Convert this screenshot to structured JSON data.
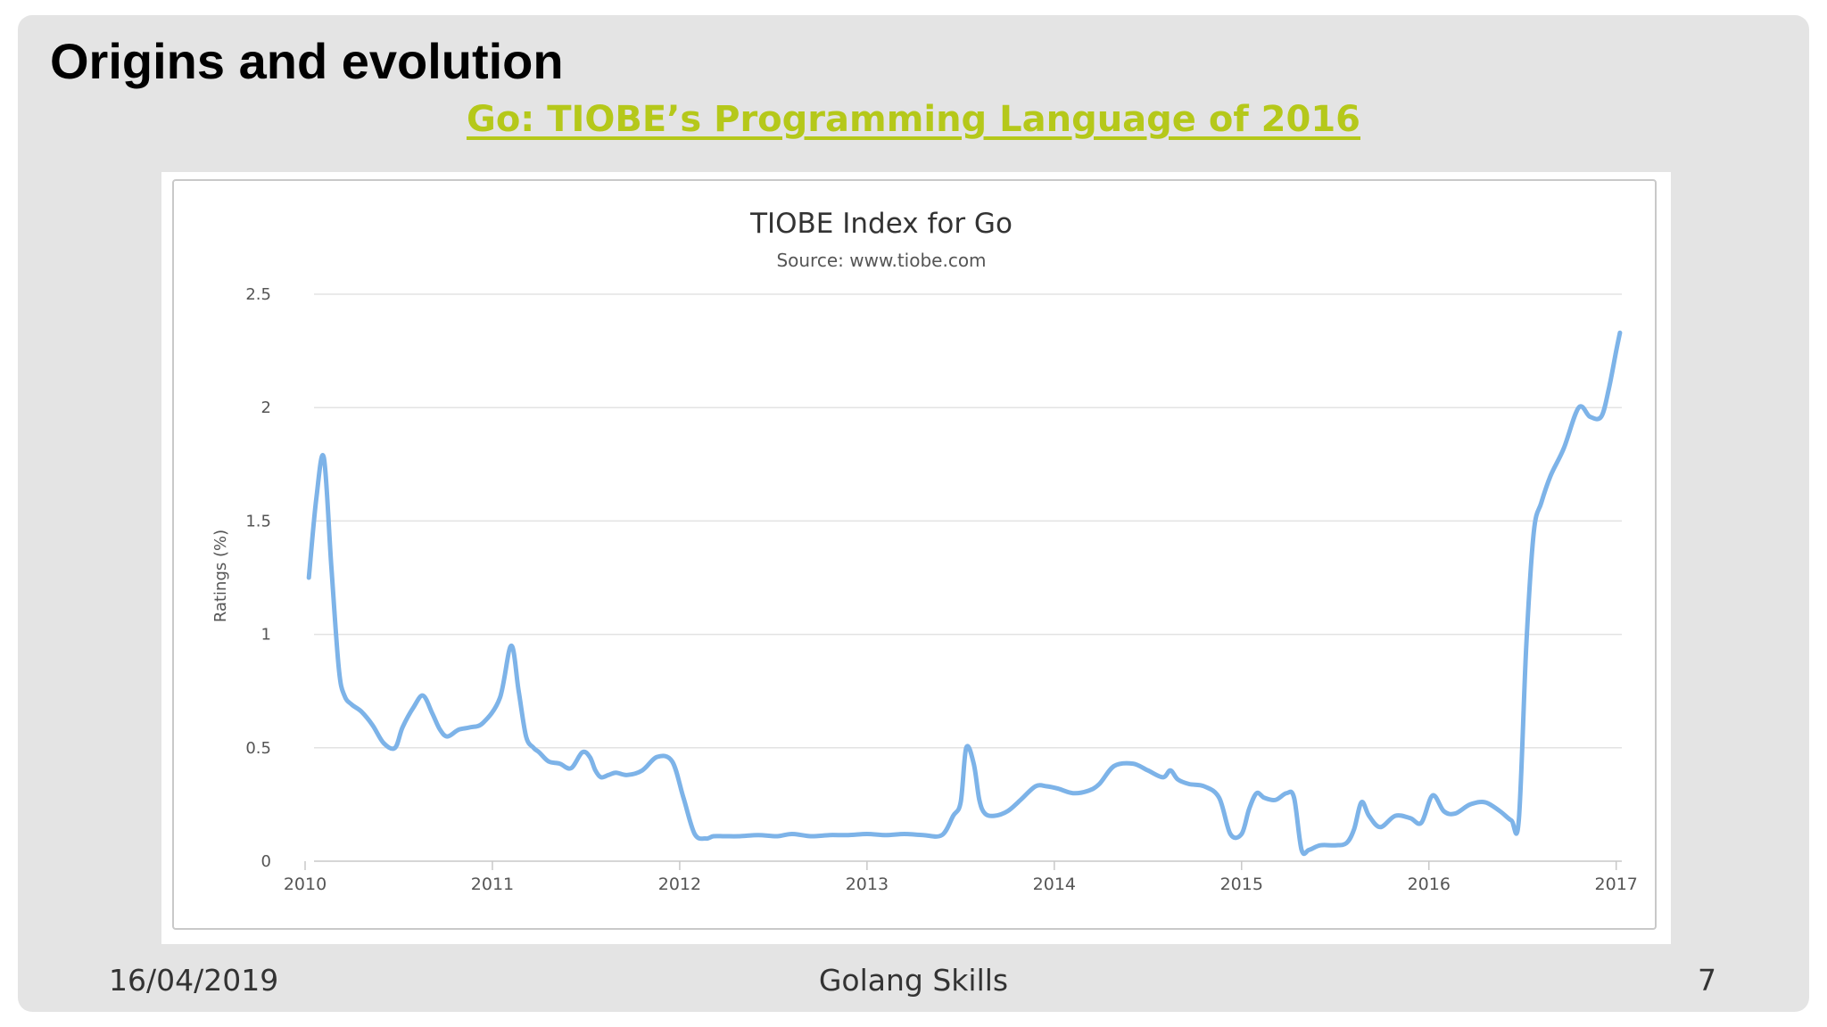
{
  "slide": {
    "title": "Origins and evolution",
    "link_text": "Go: TIOBE’s Programming Language of 2016",
    "footer_date": "16/04/2019",
    "footer_center": "Golang Skills",
    "page_number": "7"
  },
  "colors": {
    "link": "#b5c81a",
    "series_line": "#7db3e8",
    "grid": "#e3e3e3"
  },
  "chart_data": {
    "type": "line",
    "title": "TIOBE Index for Go",
    "subtitle": "Source: www.tiobe.com",
    "ylabel": "Ratings (%)",
    "xlabel": "",
    "xlim": [
      2010,
      2017.03
    ],
    "ylim": [
      0,
      2.5
    ],
    "x_ticks": [
      "2010",
      "2011",
      "2012",
      "2013",
      "2014",
      "2015",
      "2016",
      "2017"
    ],
    "y_ticks": [
      "0",
      "0.5",
      "1",
      "1.5",
      "2",
      "2.5"
    ],
    "grid": true,
    "legend": "none",
    "series": [
      {
        "x": [
          2010.02,
          2010.06,
          2010.1,
          2010.14,
          2010.18,
          2010.21,
          2010.25,
          2010.3,
          2010.36,
          2010.42,
          2010.48,
          2010.52,
          2010.58,
          2010.63,
          2010.68,
          2010.72,
          2010.76,
          2010.82,
          2010.88,
          2010.95,
          2011.04,
          2011.1,
          2011.14,
          2011.18,
          2011.22,
          2011.25,
          2011.3,
          2011.36,
          2011.42,
          2011.48,
          2011.52,
          2011.55,
          2011.58,
          2011.62,
          2011.66,
          2011.72,
          2011.8,
          2011.88,
          2011.96,
          2012.02,
          2012.08,
          2012.14,
          2012.18,
          2012.24,
          2012.32,
          2012.42,
          2012.52,
          2012.6,
          2012.7,
          2012.8,
          2012.9,
          2013.0,
          2013.1,
          2013.2,
          2013.3,
          2013.4,
          2013.46,
          2013.5,
          2013.53,
          2013.57,
          2013.6,
          2013.63,
          2013.68,
          2013.75,
          2013.82,
          2013.9,
          2013.96,
          2014.02,
          2014.1,
          2014.18,
          2014.24,
          2014.32,
          2014.42,
          2014.5,
          2014.58,
          2014.62,
          2014.66,
          2014.72,
          2014.8,
          2014.88,
          2014.94,
          2015.0,
          2015.04,
          2015.08,
          2015.12,
          2015.18,
          2015.24,
          2015.28,
          2015.32,
          2015.36,
          2015.42,
          2015.5,
          2015.56,
          2015.6,
          2015.64,
          2015.68,
          2015.74,
          2015.82,
          2015.9,
          2015.96,
          2016.02,
          2016.08,
          2016.14,
          2016.22,
          2016.3,
          2016.38,
          2016.44,
          2016.48,
          2016.52,
          2016.56,
          2016.6,
          2016.65,
          2016.72,
          2016.8,
          2016.86,
          2016.92,
          2016.96,
          2017.0,
          2017.02
        ],
        "values": [
          1.25,
          1.6,
          1.78,
          1.3,
          0.85,
          0.73,
          0.69,
          0.66,
          0.6,
          0.52,
          0.5,
          0.59,
          0.68,
          0.73,
          0.65,
          0.58,
          0.55,
          0.58,
          0.59,
          0.61,
          0.72,
          0.95,
          0.75,
          0.55,
          0.5,
          0.48,
          0.44,
          0.43,
          0.41,
          0.48,
          0.46,
          0.4,
          0.37,
          0.38,
          0.39,
          0.38,
          0.4,
          0.46,
          0.44,
          0.28,
          0.12,
          0.1,
          0.11,
          0.11,
          0.11,
          0.115,
          0.11,
          0.12,
          0.11,
          0.115,
          0.115,
          0.12,
          0.115,
          0.12,
          0.115,
          0.115,
          0.2,
          0.26,
          0.5,
          0.43,
          0.27,
          0.21,
          0.2,
          0.22,
          0.27,
          0.33,
          0.33,
          0.32,
          0.3,
          0.31,
          0.34,
          0.42,
          0.43,
          0.4,
          0.37,
          0.4,
          0.36,
          0.34,
          0.33,
          0.28,
          0.12,
          0.12,
          0.23,
          0.3,
          0.28,
          0.27,
          0.3,
          0.28,
          0.05,
          0.05,
          0.07,
          0.07,
          0.08,
          0.14,
          0.26,
          0.2,
          0.15,
          0.2,
          0.19,
          0.17,
          0.29,
          0.22,
          0.21,
          0.25,
          0.26,
          0.22,
          0.18,
          0.18,
          0.95,
          1.45,
          1.58,
          1.7,
          1.82,
          2.0,
          1.96,
          1.96,
          2.08,
          2.25,
          2.33
        ]
      }
    ]
  }
}
